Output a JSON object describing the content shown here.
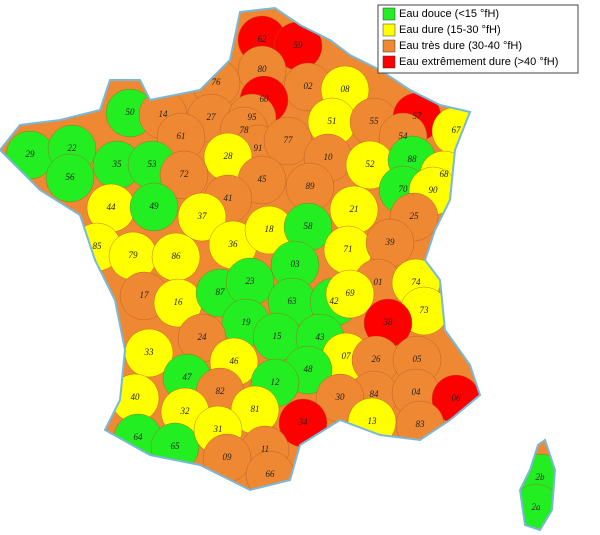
{
  "legend": [
    {
      "label": "Eau douce (<15 °fH)",
      "color": "#22ee22"
    },
    {
      "label": "Eau dure (15-30 °fH)",
      "color": "#ffff00"
    },
    {
      "label": "Eau très dure (30-40 °fH)",
      "color": "#ee8833"
    },
    {
      "label": "Eau extrêmement dure (>40 °fH)",
      "color": "#ff0000"
    }
  ],
  "departments": [
    {
      "code": "62",
      "color": "#ff0000"
    },
    {
      "code": "59",
      "color": "#ff0000"
    },
    {
      "code": "80",
      "color": "#ee8833"
    },
    {
      "code": "76",
      "color": "#ee8833"
    },
    {
      "code": "02",
      "color": "#ee8833"
    },
    {
      "code": "08",
      "color": "#ffff00"
    },
    {
      "code": "60",
      "color": "#ff0000"
    },
    {
      "code": "50",
      "color": "#22ee22"
    },
    {
      "code": "14",
      "color": "#ee8833"
    },
    {
      "code": "27",
      "color": "#ee8833"
    },
    {
      "code": "95",
      "color": "#ee8833"
    },
    {
      "code": "78",
      "color": "#ee8833"
    },
    {
      "code": "51",
      "color": "#ffff00"
    },
    {
      "code": "55",
      "color": "#ee8833"
    },
    {
      "code": "57",
      "color": "#ff0000"
    },
    {
      "code": "67",
      "color": "#ffff00"
    },
    {
      "code": "54",
      "color": "#ee8833"
    },
    {
      "code": "61",
      "color": "#ee8833"
    },
    {
      "code": "91",
      "color": "#ee8833"
    },
    {
      "code": "77",
      "color": "#ee8833"
    },
    {
      "code": "29",
      "color": "#22ee22"
    },
    {
      "code": "22",
      "color": "#22ee22"
    },
    {
      "code": "35",
      "color": "#22ee22"
    },
    {
      "code": "53",
      "color": "#22ee22"
    },
    {
      "code": "28",
      "color": "#ffff00"
    },
    {
      "code": "10",
      "color": "#ee8833"
    },
    {
      "code": "52",
      "color": "#ffff00"
    },
    {
      "code": "88",
      "color": "#22ee22"
    },
    {
      "code": "56",
      "color": "#22ee22"
    },
    {
      "code": "72",
      "color": "#ee8833"
    },
    {
      "code": "45",
      "color": "#ee8833"
    },
    {
      "code": "89",
      "color": "#ee8833"
    },
    {
      "code": "70",
      "color": "#22ee22"
    },
    {
      "code": "68",
      "color": "#ffff00"
    },
    {
      "code": "90",
      "color": "#ffff00"
    },
    {
      "code": "44",
      "color": "#ffff00"
    },
    {
      "code": "49",
      "color": "#22ee22"
    },
    {
      "code": "41",
      "color": "#ee8833"
    },
    {
      "code": "21",
      "color": "#ffff00"
    },
    {
      "code": "25",
      "color": "#ee8833"
    },
    {
      "code": "37",
      "color": "#ffff00"
    },
    {
      "code": "85",
      "color": "#ffff00"
    },
    {
      "code": "79",
      "color": "#ffff00"
    },
    {
      "code": "86",
      "color": "#ffff00"
    },
    {
      "code": "36",
      "color": "#ffff00"
    },
    {
      "code": "18",
      "color": "#ffff00"
    },
    {
      "code": "58",
      "color": "#22ee22"
    },
    {
      "code": "71",
      "color": "#ffff00"
    },
    {
      "code": "39",
      "color": "#ee8833"
    },
    {
      "code": "03",
      "color": "#22ee22"
    },
    {
      "code": "01",
      "color": "#ee8833"
    },
    {
      "code": "74",
      "color": "#ffff00"
    },
    {
      "code": "17",
      "color": "#ee8833"
    },
    {
      "code": "16",
      "color": "#ffff00"
    },
    {
      "code": "87",
      "color": "#22ee22"
    },
    {
      "code": "23",
      "color": "#22ee22"
    },
    {
      "code": "63",
      "color": "#22ee22"
    },
    {
      "code": "42",
      "color": "#22ee22"
    },
    {
      "code": "69",
      "color": "#ffff00"
    },
    {
      "code": "73",
      "color": "#ffff00"
    },
    {
      "code": "38",
      "color": "#ff0000"
    },
    {
      "code": "19",
      "color": "#22ee22"
    },
    {
      "code": "24",
      "color": "#ee8833"
    },
    {
      "code": "15",
      "color": "#22ee22"
    },
    {
      "code": "43",
      "color": "#22ee22"
    },
    {
      "code": "33",
      "color": "#ffff00"
    },
    {
      "code": "46",
      "color": "#ffff00"
    },
    {
      "code": "07",
      "color": "#ffff00"
    },
    {
      "code": "26",
      "color": "#ee8833"
    },
    {
      "code": "05",
      "color": "#ee8833"
    },
    {
      "code": "47",
      "color": "#22ee22"
    },
    {
      "code": "48",
      "color": "#22ee22"
    },
    {
      "code": "12",
      "color": "#22ee22"
    },
    {
      "code": "82",
      "color": "#ee8833"
    },
    {
      "code": "40",
      "color": "#ffff00"
    },
    {
      "code": "84",
      "color": "#ee8833"
    },
    {
      "code": "04",
      "color": "#ee8833"
    },
    {
      "code": "30",
      "color": "#ee8833"
    },
    {
      "code": "06",
      "color": "#ff0000"
    },
    {
      "code": "81",
      "color": "#ffff00"
    },
    {
      "code": "32",
      "color": "#ffff00"
    },
    {
      "code": "34",
      "color": "#ff0000"
    },
    {
      "code": "13",
      "color": "#ffff00"
    },
    {
      "code": "83",
      "color": "#ee8833"
    },
    {
      "code": "64",
      "color": "#22ee22"
    },
    {
      "code": "65",
      "color": "#22ee22"
    },
    {
      "code": "31",
      "color": "#ffff00"
    },
    {
      "code": "11",
      "color": "#ee8833"
    },
    {
      "code": "09",
      "color": "#ee8833"
    },
    {
      "code": "66",
      "color": "#ee8833"
    },
    {
      "code": "2b",
      "color": "#22ee22"
    },
    {
      "code": "2a",
      "color": "#22ee22"
    }
  ]
}
